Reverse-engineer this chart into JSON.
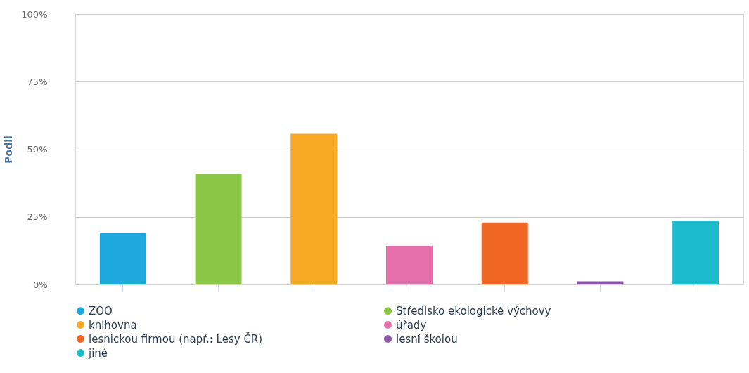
{
  "chart_data": {
    "type": "bar",
    "ylabel": "Podil",
    "categories": [
      null,
      null,
      null,
      null,
      null,
      null,
      null
    ],
    "series": [
      {
        "name": "ZOO",
        "color": "#1fa8e0",
        "values": [
          19.2,
          null,
          null,
          null,
          null,
          null,
          null
        ]
      },
      {
        "name": "Středisko ekologické výchovy",
        "color": "#8ac647",
        "values": [
          null,
          40.9,
          null,
          null,
          null,
          null,
          null
        ]
      },
      {
        "name": "knihovna",
        "color": "#f9a825",
        "values": [
          null,
          null,
          55.7,
          null,
          null,
          null,
          null
        ]
      },
      {
        "name": "úřady",
        "color": "#e56fab",
        "values": [
          null,
          null,
          null,
          14.3,
          null,
          null,
          null
        ]
      },
      {
        "name": "lesnickou firmou (např.: Lesy ČR)",
        "color": "#f06623",
        "values": [
          null,
          null,
          null,
          null,
          22.9,
          null,
          null
        ]
      },
      {
        "name": "lesní školou",
        "color": "#8a56a5",
        "values": [
          null,
          null,
          null,
          null,
          null,
          1.2,
          null
        ]
      },
      {
        "name": "jiné",
        "color": "#1dbccd",
        "values": [
          null,
          null,
          null,
          null,
          null,
          null,
          23.6
        ]
      }
    ],
    "ylim": [
      0,
      100
    ],
    "yticks": [
      {
        "value": 0,
        "label": "0%"
      },
      {
        "value": 25,
        "label": "25%"
      },
      {
        "value": 50,
        "label": "50%"
      },
      {
        "value": 75,
        "label": "75%"
      },
      {
        "value": 100,
        "label": "100%"
      }
    ],
    "grid": "y",
    "legend": "bottom"
  }
}
